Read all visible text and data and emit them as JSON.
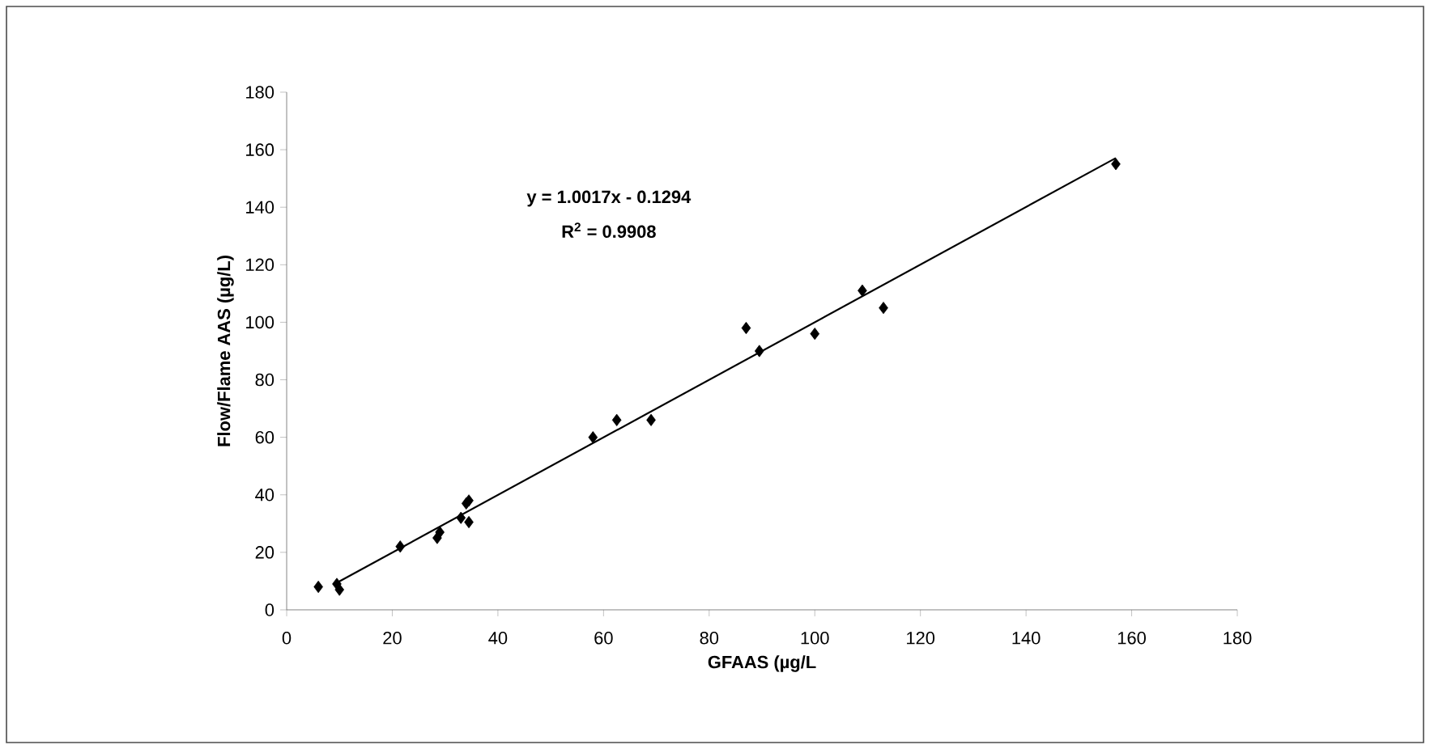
{
  "chart_data": {
    "type": "scatter",
    "xlabel": "GFAAS (µg/L",
    "ylabel": "Flow/Flame AAS (µg/L)",
    "xlim": [
      0,
      180
    ],
    "ylim": [
      0,
      180
    ],
    "xticks": [
      0,
      20,
      40,
      60,
      80,
      100,
      120,
      140,
      160,
      180
    ],
    "yticks": [
      0,
      20,
      40,
      60,
      80,
      100,
      120,
      140,
      160,
      180
    ],
    "grid": false,
    "marker": "diamond",
    "annotations": [
      "y = 1.0017x - 0.1294",
      "R$^{2}$ = 0.9908"
    ],
    "series": [
      {
        "color": "#000000",
        "x": [
          6,
          9.5,
          10,
          21.5,
          28.5,
          29,
          33,
          34,
          34.5,
          34.5,
          58,
          62.5,
          69,
          87,
          89.5,
          100,
          109,
          113,
          157
        ],
        "values": [
          8,
          9,
          7,
          22,
          25,
          27,
          32,
          37,
          38,
          30.5,
          60,
          66,
          66,
          98,
          90,
          96,
          111,
          105,
          155
        ]
      },
      {
        "type": "line",
        "color": "#000000",
        "marker": "none",
        "line_style": "solid",
        "x": [
          9.5,
          157
        ],
        "values": [
          9.4,
          157.1
        ]
      }
    ]
  }
}
